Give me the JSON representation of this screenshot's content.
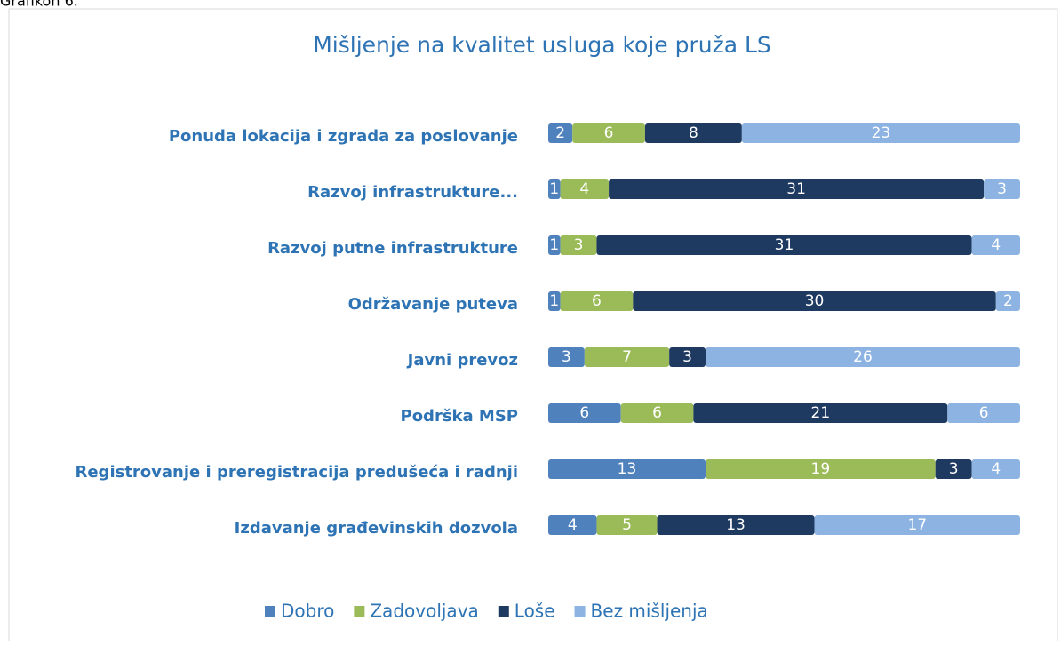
{
  "caption": "Grafikon 6.",
  "chart_data": {
    "type": "stacked-barh",
    "title": "Mišljenje na kvalitet usluga koje pruža LS",
    "categories": [
      "Ponuda lokacija i zgrada za poslovanje",
      "Razvoj infrastrukture...",
      "Razvoj  putne infrastrukture",
      "Održavanje puteva",
      "Javni prevoz",
      "Podrška MSP",
      "Registrovanje i preregistracija predušeća i radnji",
      "Izdavanje građevinskih dozvola"
    ],
    "series": [
      {
        "name": "Dobro",
        "color": "#4f81bd",
        "values": [
          2,
          1,
          1,
          1,
          3,
          6,
          13,
          4
        ]
      },
      {
        "name": "Zadovoljava",
        "color": "#9bbb59",
        "values": [
          6,
          4,
          3,
          6,
          7,
          6,
          19,
          5
        ]
      },
      {
        "name": "Loše",
        "color": "#1f3a60",
        "values": [
          8,
          31,
          31,
          30,
          3,
          21,
          3,
          13
        ]
      },
      {
        "name": "Bez mišljenja",
        "color": "#8db3e2",
        "values": [
          23,
          3,
          4,
          2,
          26,
          6,
          4,
          17
        ]
      }
    ],
    "xlim": [
      0,
      39
    ],
    "legend": "bottom"
  }
}
